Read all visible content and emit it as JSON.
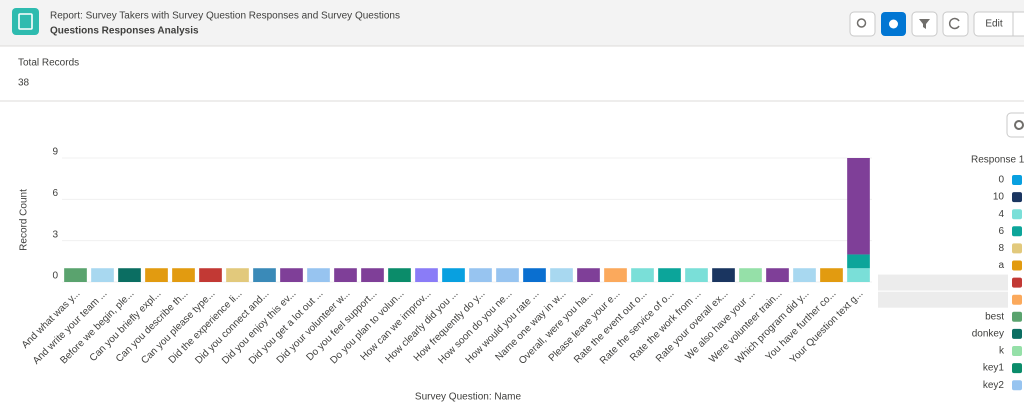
{
  "header": {
    "subtitle": "Report: Survey Takers with Survey Question Responses and Survey Questions",
    "title": "Questions Responses Analysis",
    "edit_button": "Edit"
  },
  "summary": {
    "label": "Total Records",
    "value": 38
  },
  "chart_data": {
    "type": "stacked-bar",
    "y_label": "Record Count",
    "x_label": "Survey Question: Name",
    "ylim": [
      0,
      9
    ],
    "yticks": [
      0,
      3,
      6,
      9
    ],
    "categories": [
      "And what was y...",
      "And write your team ...",
      "Before we begin, ple...",
      "Can you briefly expl...",
      "Can you describe th...",
      "Can you please type...",
      "Did the experience li...",
      "Did you connect and...",
      "Did you enjoy this ev...",
      "Did you get a lot out ...",
      "Did your volunteer w...",
      "Do you feel support...",
      "Do you plan to volun...",
      "How can we improv...",
      "How clearly did you ...",
      "How frequently do y...",
      "How soon do you ne...",
      "How would you rate ...",
      "Name one way in w...",
      "Overall, were you ha...",
      "Please leave your e...",
      "Rate the event out o...",
      "Rate the service of o...",
      "Rate the work from ...",
      "Rate your overall ex...",
      "We also have your ...",
      "Were volunteer train...",
      "Which program did y...",
      "You have further co...",
      "Your Question text g..."
    ],
    "segments": [
      [
        {
          "value": 1,
          "color": "#5aa36e"
        }
      ],
      [
        {
          "value": 1,
          "color": "#a8d8f0"
        }
      ],
      [
        {
          "value": 1,
          "color": "#0b6e62"
        }
      ],
      [
        {
          "value": 1,
          "color": "#e29b10"
        }
      ],
      [
        {
          "value": 1,
          "color": "#e29b10"
        }
      ],
      [
        {
          "value": 1,
          "color": "#c23934"
        }
      ],
      [
        {
          "value": 1,
          "color": "#e2c97c"
        }
      ],
      [
        {
          "value": 1,
          "color": "#3a8ab8"
        }
      ],
      [
        {
          "value": 1,
          "color": "#7f3f98"
        }
      ],
      [
        {
          "value": 1,
          "color": "#97c4f0"
        }
      ],
      [
        {
          "value": 1,
          "color": "#7f3f98"
        }
      ],
      [
        {
          "value": 1,
          "color": "#7f3f98"
        }
      ],
      [
        {
          "value": 1,
          "color": "#0b8c6a"
        }
      ],
      [
        {
          "value": 1,
          "color": "#8a7cf7"
        }
      ],
      [
        {
          "value": 1,
          "color": "#08a0e0"
        }
      ],
      [
        {
          "value": 1,
          "color": "#97c4f0"
        }
      ],
      [
        {
          "value": 1,
          "color": "#97c4f0"
        }
      ],
      [
        {
          "value": 1,
          "color": "#0a6fd0"
        }
      ],
      [
        {
          "value": 1,
          "color": "#a8d8f0"
        }
      ],
      [
        {
          "value": 1,
          "color": "#7f3f98"
        }
      ],
      [
        {
          "value": 1,
          "color": "#fba95c"
        }
      ],
      [
        {
          "value": 1,
          "color": "#7adfd8"
        }
      ],
      [
        {
          "value": 1,
          "color": "#0ca59a"
        }
      ],
      [
        {
          "value": 1,
          "color": "#7adfd8"
        }
      ],
      [
        {
          "value": 1,
          "color": "#1a3560"
        }
      ],
      [
        {
          "value": 1,
          "color": "#95e0a8"
        }
      ],
      [
        {
          "value": 1,
          "color": "#7f3f98"
        }
      ],
      [
        {
          "value": 1,
          "color": "#a8d8f0"
        }
      ],
      [
        {
          "value": 1,
          "color": "#e29b10"
        }
      ],
      [
        {
          "value": 1,
          "color": "#7adfd8"
        },
        {
          "value": 1,
          "color": "#0ca59a"
        },
        {
          "value": 7,
          "color": "#7f3f98"
        }
      ]
    ],
    "legend_title": "Response 1",
    "legend": [
      {
        "name": "0",
        "color": "#08a0e0"
      },
      {
        "name": "10",
        "color": "#1a3560"
      },
      {
        "name": "4",
        "color": "#7adfd8"
      },
      {
        "name": "6",
        "color": "#0ca59a"
      },
      {
        "name": "8",
        "color": "#e2c97c"
      },
      {
        "name": "a",
        "color": "#e29b10"
      },
      {
        "name": null,
        "color": "#c23934"
      },
      {
        "name": null,
        "color": "#fba95c"
      },
      {
        "name": "best",
        "color": "#5aa36e"
      },
      {
        "name": "donkey",
        "color": "#0b6e62"
      },
      {
        "name": "k",
        "color": "#95e0a8"
      },
      {
        "name": "key1",
        "color": "#0b8c6a"
      },
      {
        "name": "key2",
        "color": "#97c4f0"
      }
    ]
  }
}
